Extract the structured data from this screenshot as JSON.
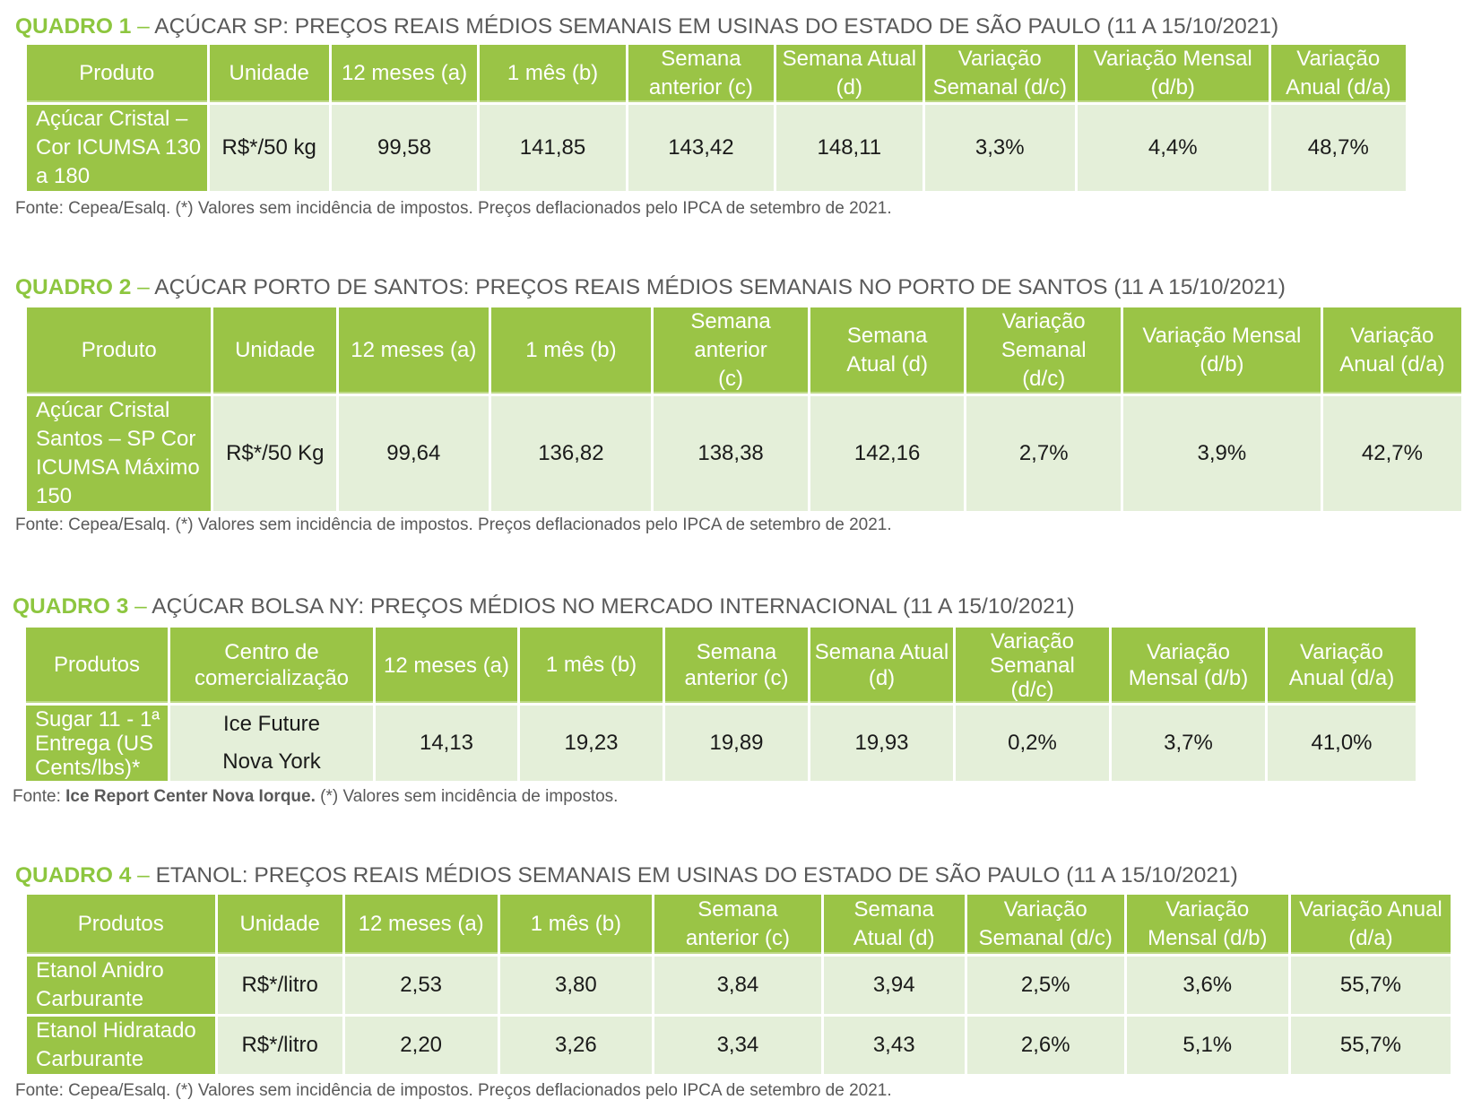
{
  "q1": {
    "num": "QUADRO 1",
    "dash": "–",
    "title": "AÇÚCAR SP: PREÇOS REAIS MÉDIOS SEMANAIS EM USINAS DO ESTADO DE SÃO PAULO (11 A 15/10/2021)",
    "headers": [
      "Produto",
      "Unidade",
      "12 meses (a)",
      "1 mês (b)",
      "Semana anterior (c)",
      "Semana Atual (d)",
      "Variação Semanal (d/c)",
      "Variação Mensal (d/b)",
      "Variação Anual (d/a)"
    ],
    "rows": [
      [
        "Açúcar Cristal – Cor ICUMSA 130 a 180",
        "R$*/50 kg",
        "99,58",
        "141,85",
        "143,42",
        "148,11",
        "3,3%",
        "4,4%",
        "48,7%"
      ]
    ],
    "fonte": "Fonte: Cepea/Esalq. (*) Valores sem incidência de impostos. Preços deflacionados pelo IPCA de setembro de 2021."
  },
  "q2": {
    "num": "QUADRO 2",
    "dash": "–",
    "title": "AÇÚCAR PORTO DE SANTOS: PREÇOS REAIS MÉDIOS SEMANAIS NO PORTO DE SANTOS (11 A 15/10/2021)",
    "headers": [
      "Produto",
      "Unidade",
      "12 meses (a)",
      "1 mês (b)",
      "Semana anterior (c)",
      "Semana Atual (d)",
      "Variação Semanal (d/c)",
      "Variação Mensal (d/b)",
      "Variação Anual (d/a)"
    ],
    "rows": [
      [
        "Açúcar Cristal Santos – SP Cor ICUMSA Máximo 150",
        "R$*/50 Kg",
        "99,64",
        "136,82",
        "138,38",
        "142,16",
        "2,7%",
        "3,9%",
        "42,7%"
      ]
    ],
    "fonte": "Fonte: Cepea/Esalq. (*) Valores sem incidência de impostos. Preços deflacionados pelo IPCA de setembro de 2021."
  },
  "q3": {
    "num": "QUADRO 3",
    "dash": "–",
    "title": "AÇÚCAR BOLSA NY: PREÇOS MÉDIOS NO MERCADO INTERNACIONAL (11 A 15/10/2021)",
    "headers": [
      "Produtos",
      "Centro de comercialização",
      "12 meses (a)",
      "1 mês (b)",
      "Semana anterior (c)",
      "Semana Atual (d)",
      "Variação Semanal (d/c)",
      "Variação Mensal (d/b)",
      "Variação Anual (d/a)"
    ],
    "rows": [
      [
        "Sugar 11 - 1ª Entrega (US Cents/lbs)*",
        "Ice Future Nova York",
        "14,13",
        "19,23",
        "19,89",
        "19,93",
        "0,2%",
        "3,7%",
        "41,0%"
      ]
    ],
    "fonte_prefix": "Fonte: ",
    "fonte_bold": "Ice Report Center Nova Iorque.",
    "fonte_rest": " (*) Valores sem incidência de impostos."
  },
  "q4": {
    "num": "QUADRO 4",
    "dash": "–",
    "title": "ETANOL: PREÇOS REAIS MÉDIOS SEMANAIS EM USINAS DO ESTADO DE SÃO PAULO (11 A 15/10/2021)",
    "headers": [
      "Produtos",
      "Unidade",
      "12 meses (a)",
      "1 mês (b)",
      "Semana anterior (c)",
      "Semana Atual (d)",
      "Variação Semanal (d/c)",
      "Variação Mensal (d/b)",
      "Variação Anual (d/a)"
    ],
    "rows": [
      [
        "Etanol Anidro Carburante",
        "R$*/litro",
        "2,53",
        "3,80",
        "3,84",
        "3,94",
        "2,5%",
        "3,6%",
        "55,7%"
      ],
      [
        "Etanol Hidratado Carburante",
        "R$*/litro",
        "2,20",
        "3,26",
        "3,34",
        "3,43",
        "2,6%",
        "5,1%",
        "55,7%"
      ]
    ],
    "fonte": "Fonte: Cepea/Esalq. (*) Valores sem incidência de impostos. Preços deflacionados pelo IPCA de setembro de 2021."
  },
  "colors": {
    "header_green": "#9ac446",
    "title_green": "#8dc63f",
    "cell_light": "#e4efd9",
    "text_gray": "#595959"
  }
}
